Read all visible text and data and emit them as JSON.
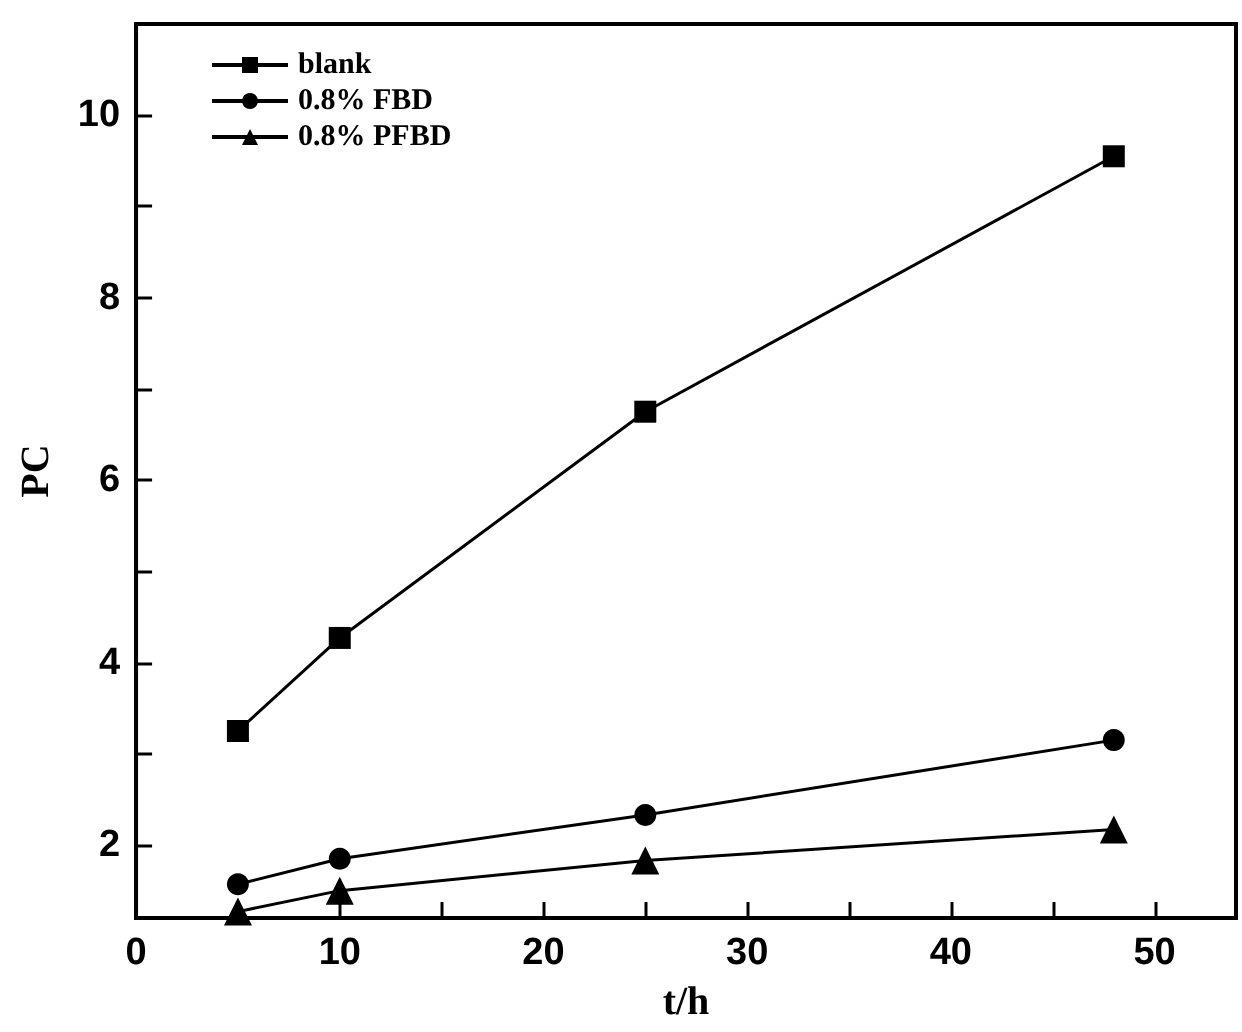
{
  "chart_data": {
    "type": "line",
    "xlabel": "t/h",
    "ylabel": "PC",
    "x": [
      5,
      10,
      25,
      48
    ],
    "series": [
      {
        "name": "blank",
        "color": "#000000",
        "marker": "square",
        "values": [
          3.25,
          4.27,
          6.75,
          9.55
        ]
      },
      {
        "name": "0.8% FBD",
        "color": "#000000",
        "marker": "circle",
        "values": [
          1.57,
          1.85,
          2.33,
          3.15
        ]
      },
      {
        "name": "0.8% PFBD",
        "color": "#000000",
        "marker": "triangle",
        "values": [
          1.27,
          1.5,
          1.83,
          2.17
        ]
      }
    ],
    "xlim": [
      0,
      54
    ],
    "xticks": [
      0,
      {
        "value": 5,
        "label": null
      },
      10,
      {
        "value": 15,
        "label": null
      },
      20,
      {
        "value": 25,
        "label": null
      },
      30,
      {
        "value": 35,
        "label": null
      },
      40,
      {
        "value": 45,
        "label": null
      },
      50
    ],
    "ylim": [
      1.2,
      11
    ],
    "yticks": [
      2,
      {
        "value": 3,
        "label": null
      },
      4,
      {
        "value": 5,
        "label": null
      },
      6,
      {
        "value": 7,
        "label": null
      },
      8,
      {
        "value": 9,
        "label": null
      },
      10
    ],
    "grid": false,
    "legend": "top left",
    "line_style": "solid"
  }
}
